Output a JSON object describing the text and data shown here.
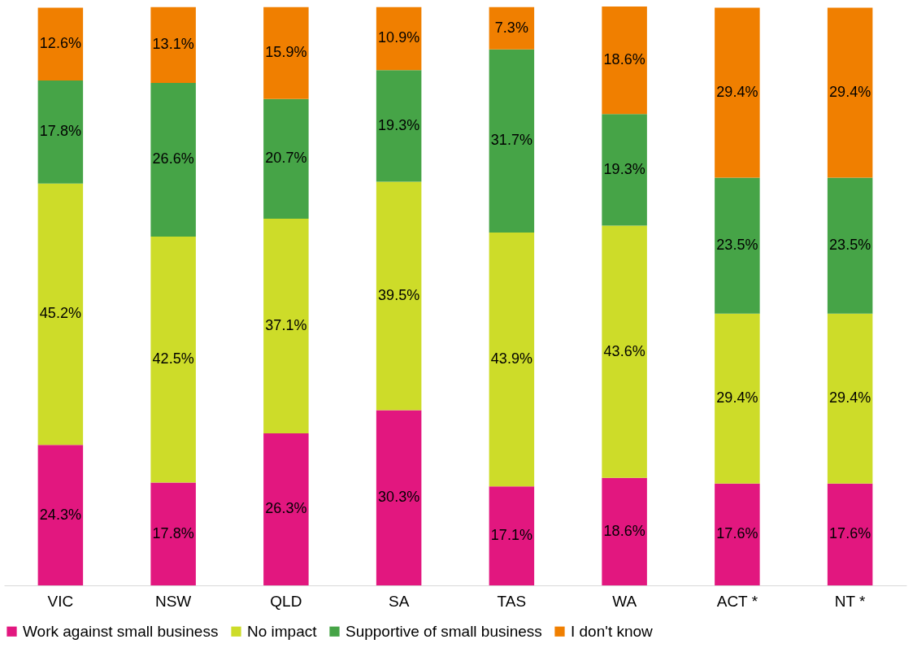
{
  "chart_data": {
    "type": "bar",
    "stacked": true,
    "categories": [
      "VIC",
      "NSW",
      "QLD",
      "SA",
      "TAS",
      "WA",
      "ACT *",
      "NT *"
    ],
    "series": [
      {
        "name": "Work against small business",
        "color": "#e2177f",
        "values": [
          24.3,
          17.8,
          26.3,
          30.3,
          17.1,
          18.6,
          17.6,
          17.6
        ],
        "value_labels": [
          "24.3%",
          "17.8%",
          "26.3%",
          "30.3%",
          "17.1%",
          "18.6%",
          "17.6%",
          "17.6%"
        ]
      },
      {
        "name": "No impact",
        "color": "#cddc29",
        "values": [
          45.2,
          42.5,
          37.1,
          39.5,
          43.9,
          43.6,
          29.4,
          29.4
        ],
        "value_labels": [
          "45.2%",
          "42.5%",
          "37.1%",
          "39.5%",
          "43.9%",
          "43.6%",
          "29.4%",
          "29.4%"
        ]
      },
      {
        "name": "Supportive of small business",
        "color": "#46a447",
        "values": [
          17.8,
          26.6,
          20.7,
          19.3,
          31.7,
          19.3,
          23.5,
          23.5
        ],
        "value_labels": [
          "17.8%",
          "26.6%",
          "20.7%",
          "19.3%",
          "31.7%",
          "19.3%",
          "23.5%",
          "23.5%"
        ]
      },
      {
        "name": "I don't know",
        "color": "#f07f00",
        "values": [
          12.6,
          13.1,
          15.9,
          10.9,
          7.3,
          18.6,
          29.4,
          29.4
        ],
        "value_labels": [
          "12.6%",
          "13.1%",
          "15.9%",
          "10.9%",
          "7.3%",
          "18.6%",
          "29.4%",
          "29.4%"
        ]
      }
    ],
    "grid": false,
    "legend": "bottom"
  }
}
